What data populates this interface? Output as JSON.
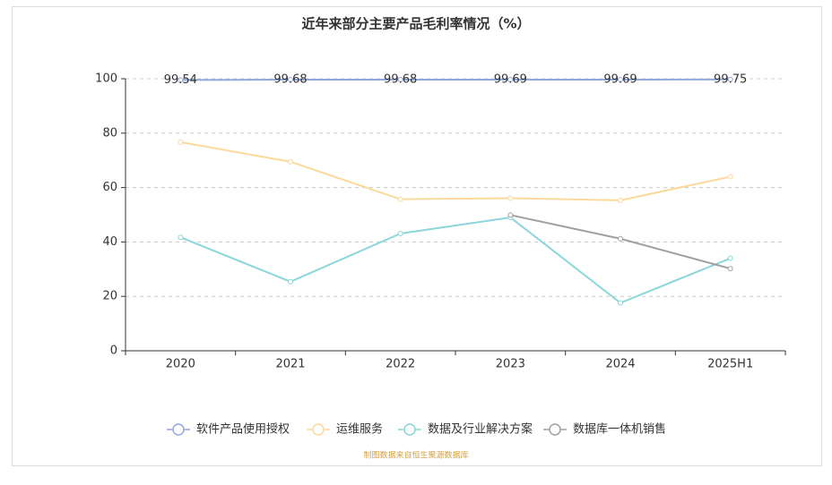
{
  "chart_data": {
    "type": "line",
    "title": "近年来部分主要产品毛利率情况（%）",
    "categories": [
      "2020",
      "2021",
      "2022",
      "2023",
      "2024",
      "2025H1"
    ],
    "series": [
      {
        "name": "软件产品使用授权",
        "color": "#8fa9dc",
        "values": [
          99.54,
          99.68,
          99.68,
          99.69,
          99.69,
          99.75
        ],
        "data_labels": true
      },
      {
        "name": "运维服务",
        "color": "#fcd99a",
        "values": [
          76.7,
          69.5,
          55.7,
          56.1,
          55.3,
          64.0
        ]
      },
      {
        "name": "数据及行业解决方案",
        "color": "#8ad6da",
        "values": [
          41.7,
          25.4,
          43.1,
          49.0,
          17.6,
          34.0
        ]
      },
      {
        "name": "数据库一体机销售",
        "color": "#a0a0a0",
        "values": [
          null,
          null,
          null,
          49.9,
          41.2,
          30.2
        ]
      }
    ],
    "ylim": [
      0,
      100
    ],
    "yticks": [
      0,
      20,
      40,
      60,
      80,
      100
    ],
    "grid": true,
    "source": "制图数据来自恒生聚源数据库"
  }
}
